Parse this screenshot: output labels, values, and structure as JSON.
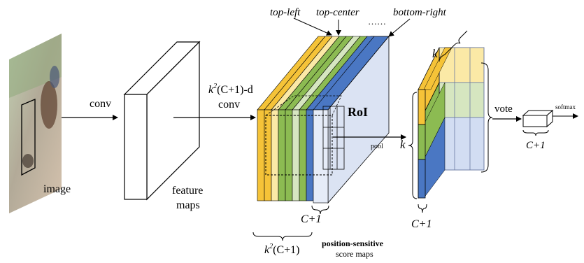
{
  "labels": {
    "image": "image",
    "conv": "conv",
    "feature_maps_line1": "feature",
    "feature_maps_line2": "maps",
    "kk_c1_d_line1_k": "k",
    "kk_c1_d_line1_rest": "(C+1)-d",
    "kk_c1_d_line2": "conv",
    "top_left": "top-left",
    "top_center": "top-center",
    "ellipsis": "……",
    "bottom_right": "bottom-right",
    "roi": "RoI",
    "pool": "pool",
    "c1_under_stack": "C+1",
    "k2c1_k": "k",
    "k2c1_rest": "(C+1)",
    "psm_line1": "position-sensitive",
    "psm_line2": "score maps",
    "k_top": "k",
    "k_left": "k",
    "c1_under_grid": "C+1",
    "vote": "vote",
    "softmax": "softmax",
    "c1_small_box": "C+1"
  },
  "colors": {
    "yellow": "#f5c338",
    "green": "#8cbb52",
    "blue": "#4a77c3",
    "light_yellow": "#fbe9a6",
    "light_green": "#d6e6c0",
    "light_blue": "#d2ddf2",
    "pale_blue": "#e6ecf8"
  }
}
